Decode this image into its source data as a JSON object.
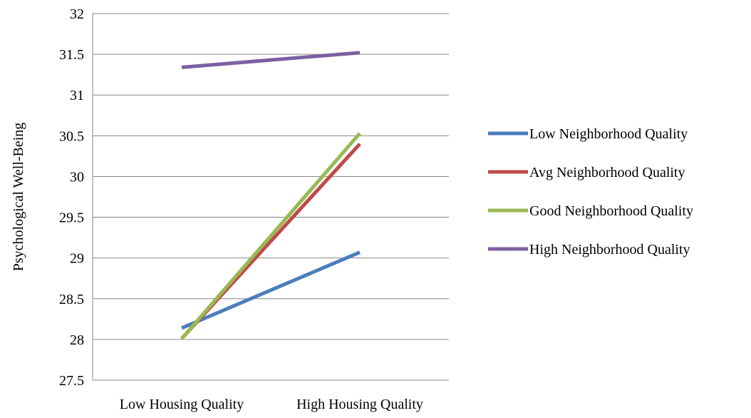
{
  "chart_data": {
    "type": "line",
    "title": "",
    "xlabel": "",
    "ylabel": "Psychological Well-Being",
    "categories": [
      "Low Housing Quality",
      "High Housing Quality"
    ],
    "ylim": [
      27.5,
      32
    ],
    "yticks": [
      "27.5",
      "28",
      "28.5",
      "29",
      "29.5",
      "30",
      "30.5",
      "31",
      "31.5",
      "32"
    ],
    "grid": true,
    "legend_position": "right",
    "series": [
      {
        "name": "Low Neighborhood Quality",
        "color": "#4a7ebb",
        "values": [
          28.14,
          29.07
        ]
      },
      {
        "name": "Avg Neighborhood Quality",
        "color": "#be4b48",
        "values": [
          28.01,
          30.4
        ]
      },
      {
        "name": "Good Neighborhood Quality",
        "color": "#98b954",
        "values": [
          28.01,
          30.53
        ]
      },
      {
        "name": "High Neighborhood Quality",
        "color": "#7d60a0",
        "values": [
          31.34,
          31.52
        ]
      }
    ]
  }
}
